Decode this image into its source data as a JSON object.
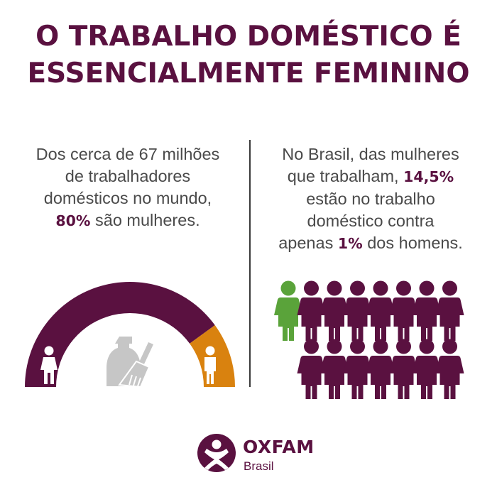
{
  "title": {
    "line1": "O TRABALHO DOMÉSTICO É",
    "line2": "ESSENCIALMENTE FEMININO"
  },
  "left_text": {
    "line1": "Dos cerca de 67 milhões",
    "line2": "de trabalhadores",
    "line3": "domésticos no mundo,",
    "line4_highlight": "80%",
    "line4_rest": " são mulheres."
  },
  "right_text": {
    "line1": "No Brasil, das mulheres",
    "line2_pre": "que trabalham, ",
    "line2_highlight": "14,5%",
    "line3": "estão no trabalho",
    "line4": "doméstico contra",
    "line5_pre": "apenas ",
    "line5_highlight": "1%",
    "line5_post": " dos homens."
  },
  "gauge": {
    "women_share_percent": 80,
    "men_share_percent": 20,
    "women_color": "#5a1140",
    "men_color": "#d9820f",
    "tools_color": "#c6c6c6"
  },
  "people_grid": {
    "man_color": "#5aa33a",
    "woman_color": "#5a1140",
    "row1_count": 8,
    "row2_count": 7
  },
  "logo": {
    "brand": "OXFAM",
    "sub": "Brasil",
    "color": "#5a1140"
  }
}
